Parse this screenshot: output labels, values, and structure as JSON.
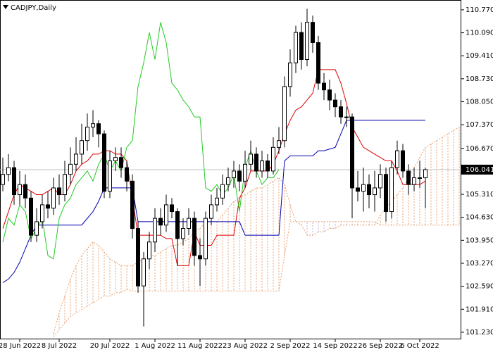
{
  "chart_data": {
    "type": "candlestick",
    "title": "CADJPY,Daily",
    "categories": [
      null,
      null,
      null,
      "28 Jun 2022",
      null,
      null,
      null,
      null,
      null,
      null,
      "8 Jul 2022",
      null,
      null,
      null,
      null,
      null,
      null,
      null,
      null,
      "20 Jul 2022",
      null,
      null,
      null,
      null,
      null,
      null,
      null,
      "1 Aug 2022",
      null,
      null,
      null,
      null,
      null,
      null,
      null,
      "11 Aug 2022",
      null,
      null,
      null,
      null,
      null,
      null,
      null,
      "23 Aug 2022",
      null,
      null,
      null,
      null,
      null,
      null,
      null,
      "2 Sep 2022",
      null,
      null,
      null,
      null,
      null,
      null,
      null,
      "14 Sep 2022",
      null,
      null,
      null,
      null,
      null,
      null,
      null,
      "26 Sep 2022",
      null,
      null,
      null,
      null,
      null,
      null,
      "6 Oct 2022",
      null,
      null,
      null,
      null,
      null,
      null,
      null
    ],
    "open": [
      105.6,
      105.9,
      106.1,
      105.3,
      105.6,
      105.2,
      104.1,
      104.5,
      105.0,
      104.9,
      105.5,
      105.3,
      105.9,
      106.2,
      106.5,
      106.9,
      107.3,
      107.4,
      107.1,
      105.4,
      106.3,
      106.4,
      106.1,
      105.7,
      104.3,
      102.6,
      103.4,
      103.9,
      104.6,
      104.4,
      105.0,
      104.8,
      104.0,
      104.3,
      104.6,
      103.5,
      103.4,
      104.6,
      105.0,
      105.2,
      105.6,
      105.8,
      106.0,
      105.7,
      106.2,
      106.5,
      106.0,
      106.3,
      106.0,
      106.7,
      106.9,
      108.5,
      109.2,
      110.1,
      109.3,
      110.4,
      109.8,
      108.6,
      108.4,
      108.1,
      107.9,
      107.6,
      107.6,
      105.5,
      105.4,
      105.6,
      105.3,
      105.5,
      105.9,
      104.8,
      106.1,
      106.6,
      106.0,
      105.6,
      105.8,
      105.8,
      null,
      null,
      null,
      null,
      null,
      null
    ],
    "high": [
      106.4,
      106.5,
      106.3,
      106.0,
      105.9,
      105.4,
      104.9,
      105.3,
      105.4,
      105.8,
      105.9,
      106.3,
      106.7,
      107.0,
      107.4,
      107.7,
      107.8,
      107.5,
      107.2,
      106.6,
      106.7,
      106.7,
      106.3,
      105.9,
      104.5,
      103.6,
      104.2,
      104.9,
      104.9,
      105.3,
      105.2,
      104.9,
      104.6,
      104.9,
      104.8,
      104.0,
      104.8,
      105.3,
      105.5,
      105.9,
      106.1,
      106.3,
      106.2,
      106.6,
      106.9,
      106.7,
      106.6,
      106.5,
      107.0,
      107.3,
      108.8,
      109.6,
      110.3,
      110.4,
      110.8,
      110.6,
      110.0,
      108.9,
      108.7,
      108.3,
      108.1,
      107.9,
      107.7,
      106.0,
      106.1,
      105.9,
      106.0,
      106.2,
      106.1,
      106.3,
      106.9,
      106.8,
      106.2,
      106.1,
      106.3,
      106.1,
      null,
      null,
      null,
      null,
      null,
      null
    ],
    "low": [
      105.4,
      105.7,
      105.0,
      105.0,
      104.9,
      103.9,
      103.9,
      104.3,
      104.6,
      104.7,
      105.0,
      105.1,
      105.6,
      106.0,
      106.2,
      106.6,
      107.0,
      106.7,
      105.2,
      105.2,
      106.0,
      105.8,
      105.4,
      104.0,
      102.4,
      101.4,
      103.1,
      103.6,
      104.1,
      104.2,
      104.6,
      103.2,
      103.8,
      104.1,
      103.2,
      102.6,
      103.2,
      104.4,
      104.8,
      105.0,
      105.4,
      105.5,
      105.4,
      105.5,
      106.0,
      105.8,
      105.8,
      105.8,
      105.9,
      106.5,
      106.7,
      108.2,
      108.9,
      109.0,
      109.1,
      109.5,
      108.4,
      108.1,
      107.8,
      107.6,
      107.4,
      107.3,
      104.6,
      105.1,
      104.8,
      104.9,
      104.8,
      105.2,
      104.5,
      104.6,
      105.9,
      105.8,
      105.3,
      105.4,
      105.5,
      104.9,
      null,
      null,
      null,
      null,
      null,
      null
    ],
    "close": [
      105.9,
      106.1,
      105.3,
      105.6,
      105.2,
      104.1,
      104.5,
      105.0,
      104.9,
      105.5,
      105.3,
      105.9,
      106.2,
      106.5,
      106.9,
      107.3,
      107.4,
      107.1,
      105.4,
      106.3,
      106.4,
      106.1,
      105.7,
      104.3,
      102.6,
      103.4,
      103.9,
      104.6,
      104.4,
      105.0,
      104.8,
      104.0,
      104.3,
      104.6,
      103.5,
      103.4,
      104.6,
      105.0,
      105.2,
      105.6,
      105.8,
      106.0,
      105.7,
      106.2,
      106.5,
      106.0,
      106.3,
      106.0,
      106.7,
      106.9,
      108.5,
      109.2,
      110.1,
      109.3,
      110.4,
      109.8,
      108.6,
      108.4,
      108.1,
      107.9,
      107.6,
      107.6,
      105.5,
      105.4,
      105.6,
      105.3,
      105.5,
      105.9,
      104.8,
      106.1,
      106.6,
      106.0,
      105.6,
      105.8,
      105.8,
      106.041,
      null,
      null,
      null,
      null,
      null,
      null
    ],
    "bull_color": "#ffffff",
    "bear_color": "#000000",
    "lines": [
      {
        "color": "#e00000",
        "values": [
          104.3,
          104.8,
          105.3,
          105.6,
          105.5,
          105.4,
          105.3,
          105.3,
          105.4,
          105.5,
          105.3,
          105.3,
          105.6,
          106.0,
          106.2,
          106.3,
          106.5,
          106.5,
          106.6,
          106.6,
          106.5,
          106.5,
          106.3,
          105.2,
          104.1,
          104.1,
          104.1,
          104.1,
          104.1,
          104.0,
          104.0,
          103.2,
          103.2,
          103.2,
          104.2,
          103.8,
          103.8,
          103.8,
          104.1,
          104.1,
          104.1,
          104.1,
          105.2,
          105.5,
          106.0,
          106.0,
          106.0,
          106.0,
          106.2,
          106.6,
          107.1,
          107.5,
          107.8,
          107.9,
          108.1,
          108.3,
          109.0,
          109.0,
          109.0,
          109.0,
          108.6,
          108.0,
          107.3,
          107.0,
          106.7,
          106.6,
          106.5,
          106.4,
          106.3,
          106.3,
          106.0,
          105.6,
          105.6,
          105.6,
          105.6,
          105.7,
          null,
          null,
          null,
          null,
          null,
          null
        ]
      },
      {
        "color": "#0000b0",
        "values": [
          102.7,
          102.8,
          103.0,
          103.3,
          103.7,
          104.1,
          104.4,
          104.4,
          104.4,
          104.4,
          104.4,
          104.4,
          104.4,
          104.4,
          104.4,
          104.6,
          104.8,
          105.1,
          105.5,
          105.5,
          105.5,
          105.5,
          105.5,
          105.5,
          104.5,
          104.5,
          104.5,
          104.5,
          104.5,
          104.5,
          104.5,
          104.5,
          104.5,
          104.5,
          104.5,
          104.5,
          104.5,
          104.5,
          104.5,
          104.5,
          104.5,
          104.5,
          104.5,
          104.1,
          104.1,
          104.1,
          104.1,
          104.1,
          104.1,
          104.1,
          106.3,
          106.45,
          106.45,
          106.45,
          106.45,
          106.45,
          106.6,
          106.6,
          106.65,
          106.7,
          107.1,
          107.5,
          107.5,
          107.5,
          107.5,
          107.5,
          107.5,
          107.5,
          107.5,
          107.5,
          107.5,
          107.5,
          107.5,
          107.5,
          107.5,
          107.5,
          null,
          null,
          null,
          null,
          null,
          null
        ]
      },
      {
        "color": "#22cc22",
        "values": [
          103.9,
          104.6,
          104.4,
          105.0,
          104.8,
          104.0,
          104.3,
          104.6,
          103.5,
          103.4,
          104.6,
          105.0,
          105.2,
          105.6,
          105.8,
          106.0,
          105.7,
          106.2,
          106.5,
          106.0,
          106.3,
          106.0,
          106.7,
          106.9,
          108.5,
          109.2,
          110.1,
          109.3,
          110.4,
          109.8,
          108.6,
          108.4,
          108.1,
          107.9,
          107.6,
          107.6,
          105.5,
          105.4,
          105.6,
          105.3,
          105.5,
          105.9,
          104.8,
          106.1,
          106.6,
          106.0,
          105.6,
          105.8,
          105.8,
          106.041,
          null,
          null,
          null,
          null,
          null,
          null,
          null,
          null,
          null,
          null,
          null,
          null,
          null,
          null,
          null,
          null,
          null,
          null,
          null,
          null,
          null,
          null,
          null,
          null,
          null,
          null,
          null,
          null,
          null,
          null,
          null,
          null
        ]
      }
    ],
    "cloud": {
      "up_color": "#e8a070",
      "down_color": "#b8b0d8",
      "span_a": [
        null,
        null,
        null,
        null,
        null,
        null,
        null,
        null,
        null,
        101.2,
        101.8,
        102.3,
        102.8,
        103.2,
        103.5,
        103.7,
        103.9,
        103.8,
        103.6,
        103.4,
        103.3,
        103.2,
        103.2,
        103.2,
        103.3,
        103.4,
        103.5,
        103.5,
        103.6,
        103.7,
        103.8,
        103.8,
        103.9,
        104.0,
        104.2,
        104.3,
        104.5,
        104.5,
        104.5,
        104.7,
        104.9,
        105.1,
        105.2,
        105.3,
        105.4,
        105.5,
        105.5,
        105.6,
        105.7,
        105.8,
        105.6,
        105.0,
        104.5,
        104.4,
        104.1,
        104.1,
        104.2,
        104.2,
        104.3,
        104.3,
        104.4,
        104.4,
        104.4,
        104.4,
        104.4,
        104.4,
        104.4,
        104.7,
        104.9,
        105.1,
        105.3,
        105.5,
        105.8,
        106.1,
        106.4,
        106.7,
        106.8,
        106.9,
        107.0,
        107.1,
        107.2,
        107.3
      ],
      "span_b": [
        null,
        null,
        null,
        null,
        null,
        null,
        null,
        null,
        null,
        101.1,
        101.3,
        101.5,
        101.7,
        101.8,
        101.9,
        102.0,
        102.1,
        102.2,
        102.3,
        102.3,
        102.4,
        102.4,
        102.5,
        102.45,
        102.45,
        102.45,
        102.45,
        102.45,
        102.45,
        102.45,
        102.45,
        102.45,
        102.45,
        102.45,
        102.45,
        102.45,
        102.45,
        102.45,
        102.45,
        102.45,
        102.45,
        102.45,
        102.45,
        102.45,
        102.45,
        102.45,
        102.45,
        102.45,
        102.45,
        102.45,
        103.5,
        104.5,
        104.5,
        104.5,
        104.5,
        104.5,
        104.5,
        104.5,
        104.5,
        104.5,
        104.5,
        104.5,
        104.5,
        104.5,
        104.5,
        104.5,
        104.5,
        104.4,
        104.4,
        104.4,
        104.4,
        104.4,
        104.4,
        104.4,
        104.4,
        104.4,
        104.4,
        104.4,
        104.4,
        104.4,
        104.4,
        104.4
      ]
    },
    "current_price": 106.041,
    "ylim": [
      101.02,
      111.06
    ],
    "yticks": [
      {
        "value": 110.77,
        "label": "110.770"
      },
      {
        "value": 110.09,
        "label": "110.090"
      },
      {
        "value": 109.41,
        "label": "109.410"
      },
      {
        "value": 108.73,
        "label": "108.730"
      },
      {
        "value": 108.05,
        "label": "108.050"
      },
      {
        "value": 107.37,
        "label": "107.370"
      },
      {
        "value": 106.67,
        "label": "106.670"
      },
      {
        "value": 105.31,
        "label": "105.310"
      },
      {
        "value": 104.63,
        "label": "104.630"
      },
      {
        "value": 103.95,
        "label": "103.950"
      },
      {
        "value": 103.27,
        "label": "103.270"
      },
      {
        "value": 102.59,
        "label": "102.590"
      },
      {
        "value": 101.91,
        "label": "101.910"
      },
      {
        "value": 101.23,
        "label": "101.230"
      }
    ]
  }
}
